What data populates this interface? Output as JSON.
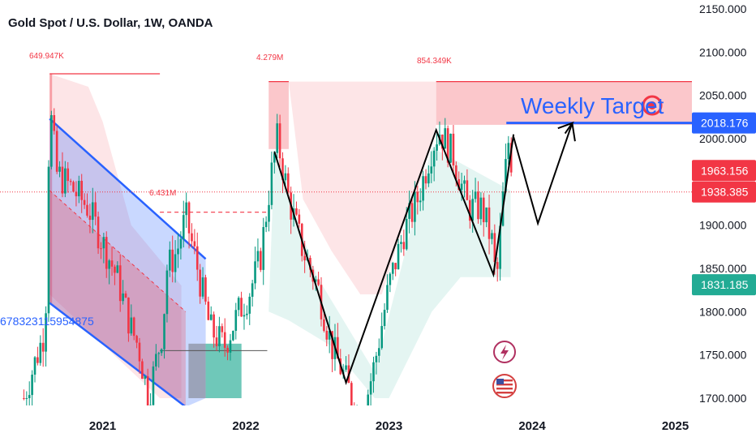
{
  "header": {
    "title": "Gold Spot / U.S. Dollar, 1W, OANDA"
  },
  "chart_data": {
    "type": "line",
    "title": "Gold Spot / U.S. Dollar, 1W, OANDA",
    "xlabel": "",
    "ylabel": "",
    "grid": false,
    "ylim": [
      1690,
      2155
    ],
    "xlim": [
      2020.35,
      2025.55
    ],
    "x_ticks": [
      "2021",
      "2022",
      "2023",
      "2024",
      "2025"
    ],
    "y_ticks": [
      "2150.000",
      "2100.000",
      "2050.000",
      "2000.000",
      "1900.000",
      "1850.000",
      "1800.000",
      "1750.000",
      "1700.000"
    ],
    "price_badges": [
      {
        "value": "2018.176",
        "color": "#2962ff"
      },
      {
        "value": "1963.156",
        "color": "#f23645"
      },
      {
        "value": "1938.385",
        "color": "#f23645"
      },
      {
        "value": "1831.185",
        "color": "#22ab94"
      }
    ],
    "annotations": {
      "weekly_target": "Weekly Target",
      "vol1": "649.947K",
      "vol2": "4.279M",
      "vol3": "854.349K",
      "vol4": "6.431M",
      "left_number": "678323115954875"
    },
    "weekly_target_price": 2018.176,
    "current_line_price": 1938.385,
    "price_path": [
      [
        2020.45,
        1700
      ],
      [
        2020.6,
        1780
      ],
      [
        2020.63,
        2040
      ],
      [
        2020.68,
        1960
      ],
      [
        2020.8,
        1940
      ],
      [
        2020.9,
        1920
      ],
      [
        2021.0,
        1880
      ],
      [
        2021.1,
        1840
      ],
      [
        2021.2,
        1780
      ],
      [
        2021.25,
        1760
      ],
      [
        2021.32,
        1700
      ],
      [
        2021.42,
        1780
      ],
      [
        2021.45,
        1850
      ],
      [
        2021.52,
        1870
      ],
      [
        2021.58,
        1910
      ],
      [
        2021.65,
        1860
      ],
      [
        2021.75,
        1780
      ],
      [
        2021.85,
        1760
      ],
      [
        2021.95,
        1800
      ],
      [
        2022.02,
        1820
      ],
      [
        2022.1,
        1860
      ],
      [
        2022.18,
        1960
      ],
      [
        2022.22,
        2000
      ],
      [
        2022.3,
        1930
      ],
      [
        2022.4,
        1870
      ],
      [
        2022.5,
        1830
      ],
      [
        2022.6,
        1760
      ],
      [
        2022.7,
        1720
      ],
      [
        2022.8,
        1670
      ],
      [
        2022.9,
        1740
      ],
      [
        2023.0,
        1830
      ],
      [
        2023.1,
        1890
      ],
      [
        2023.2,
        1930
      ],
      [
        2023.3,
        1990
      ],
      [
        2023.35,
        2010
      ],
      [
        2023.45,
        1980
      ],
      [
        2023.55,
        1920
      ],
      [
        2023.65,
        1920
      ],
      [
        2023.72,
        1880
      ],
      [
        2023.75,
        1830
      ],
      [
        2023.8,
        1940
      ],
      [
        2023.84,
        2005
      ],
      [
        2023.87,
        1940
      ]
    ],
    "projection_path": [
      [
        2023.87,
        2002
      ],
      [
        2024.04,
        1902
      ],
      [
        2024.28,
        2018
      ],
      [
        2024.3,
        1997
      ]
    ],
    "swing_path": [
      [
        2022.2,
        1985
      ],
      [
        2022.7,
        1718
      ],
      [
        2023.33,
        2010
      ],
      [
        2023.73,
        1843
      ],
      [
        2023.87,
        2005
      ]
    ],
    "channel": {
      "upper": [
        [
          2020.63,
          2023
        ],
        [
          2021.72,
          1861
        ]
      ],
      "lower": [
        [
          2020.63,
          1810
        ],
        [
          2021.58,
          1690
        ]
      ]
    },
    "resistance_zones": [
      {
        "x0": 2022.16,
        "x1": 2022.3,
        "top": 2066,
        "bottom": 1988
      },
      {
        "x0": 2023.33,
        "x1": 2025.45,
        "top": 2066,
        "bottom": 2016
      }
    ],
    "long_box": {
      "x0": 2021.6,
      "x1": 2021.97,
      "top": 1763,
      "bottom": 1700
    }
  }
}
